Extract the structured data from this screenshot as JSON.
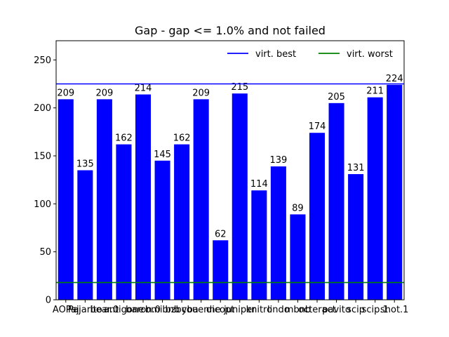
{
  "chart_data": {
    "type": "bar",
    "title": "Gap - gap <= 1.0% and not failed",
    "xlabel": "",
    "ylabel": "",
    "ylim": [
      0,
      270
    ],
    "yticks": [
      0,
      50,
      100,
      150,
      200,
      250
    ],
    "categories": [
      "AOPaj",
      "Pajarito",
      "bear.0",
      "antigone",
      "baron.0",
      "bmibnb",
      "bzbyba",
      "couenne",
      "dicopt",
      "juniper",
      "knitro",
      "lindo",
      "mbnb",
      "octeract",
      "pavito",
      "scip",
      "scip.1",
      "shot.1"
    ],
    "values": [
      209,
      135,
      209,
      162,
      214,
      145,
      162,
      209,
      62,
      215,
      114,
      139,
      89,
      174,
      205,
      131,
      211,
      224
    ],
    "bar_color": "#0000ff",
    "reference_lines": [
      {
        "name": "virt. best",
        "value": 225,
        "color": "#0000ff"
      },
      {
        "name": "virt. worst",
        "value": 18,
        "color": "#008000"
      }
    ],
    "legend_position": "upper right",
    "grid": false
  }
}
